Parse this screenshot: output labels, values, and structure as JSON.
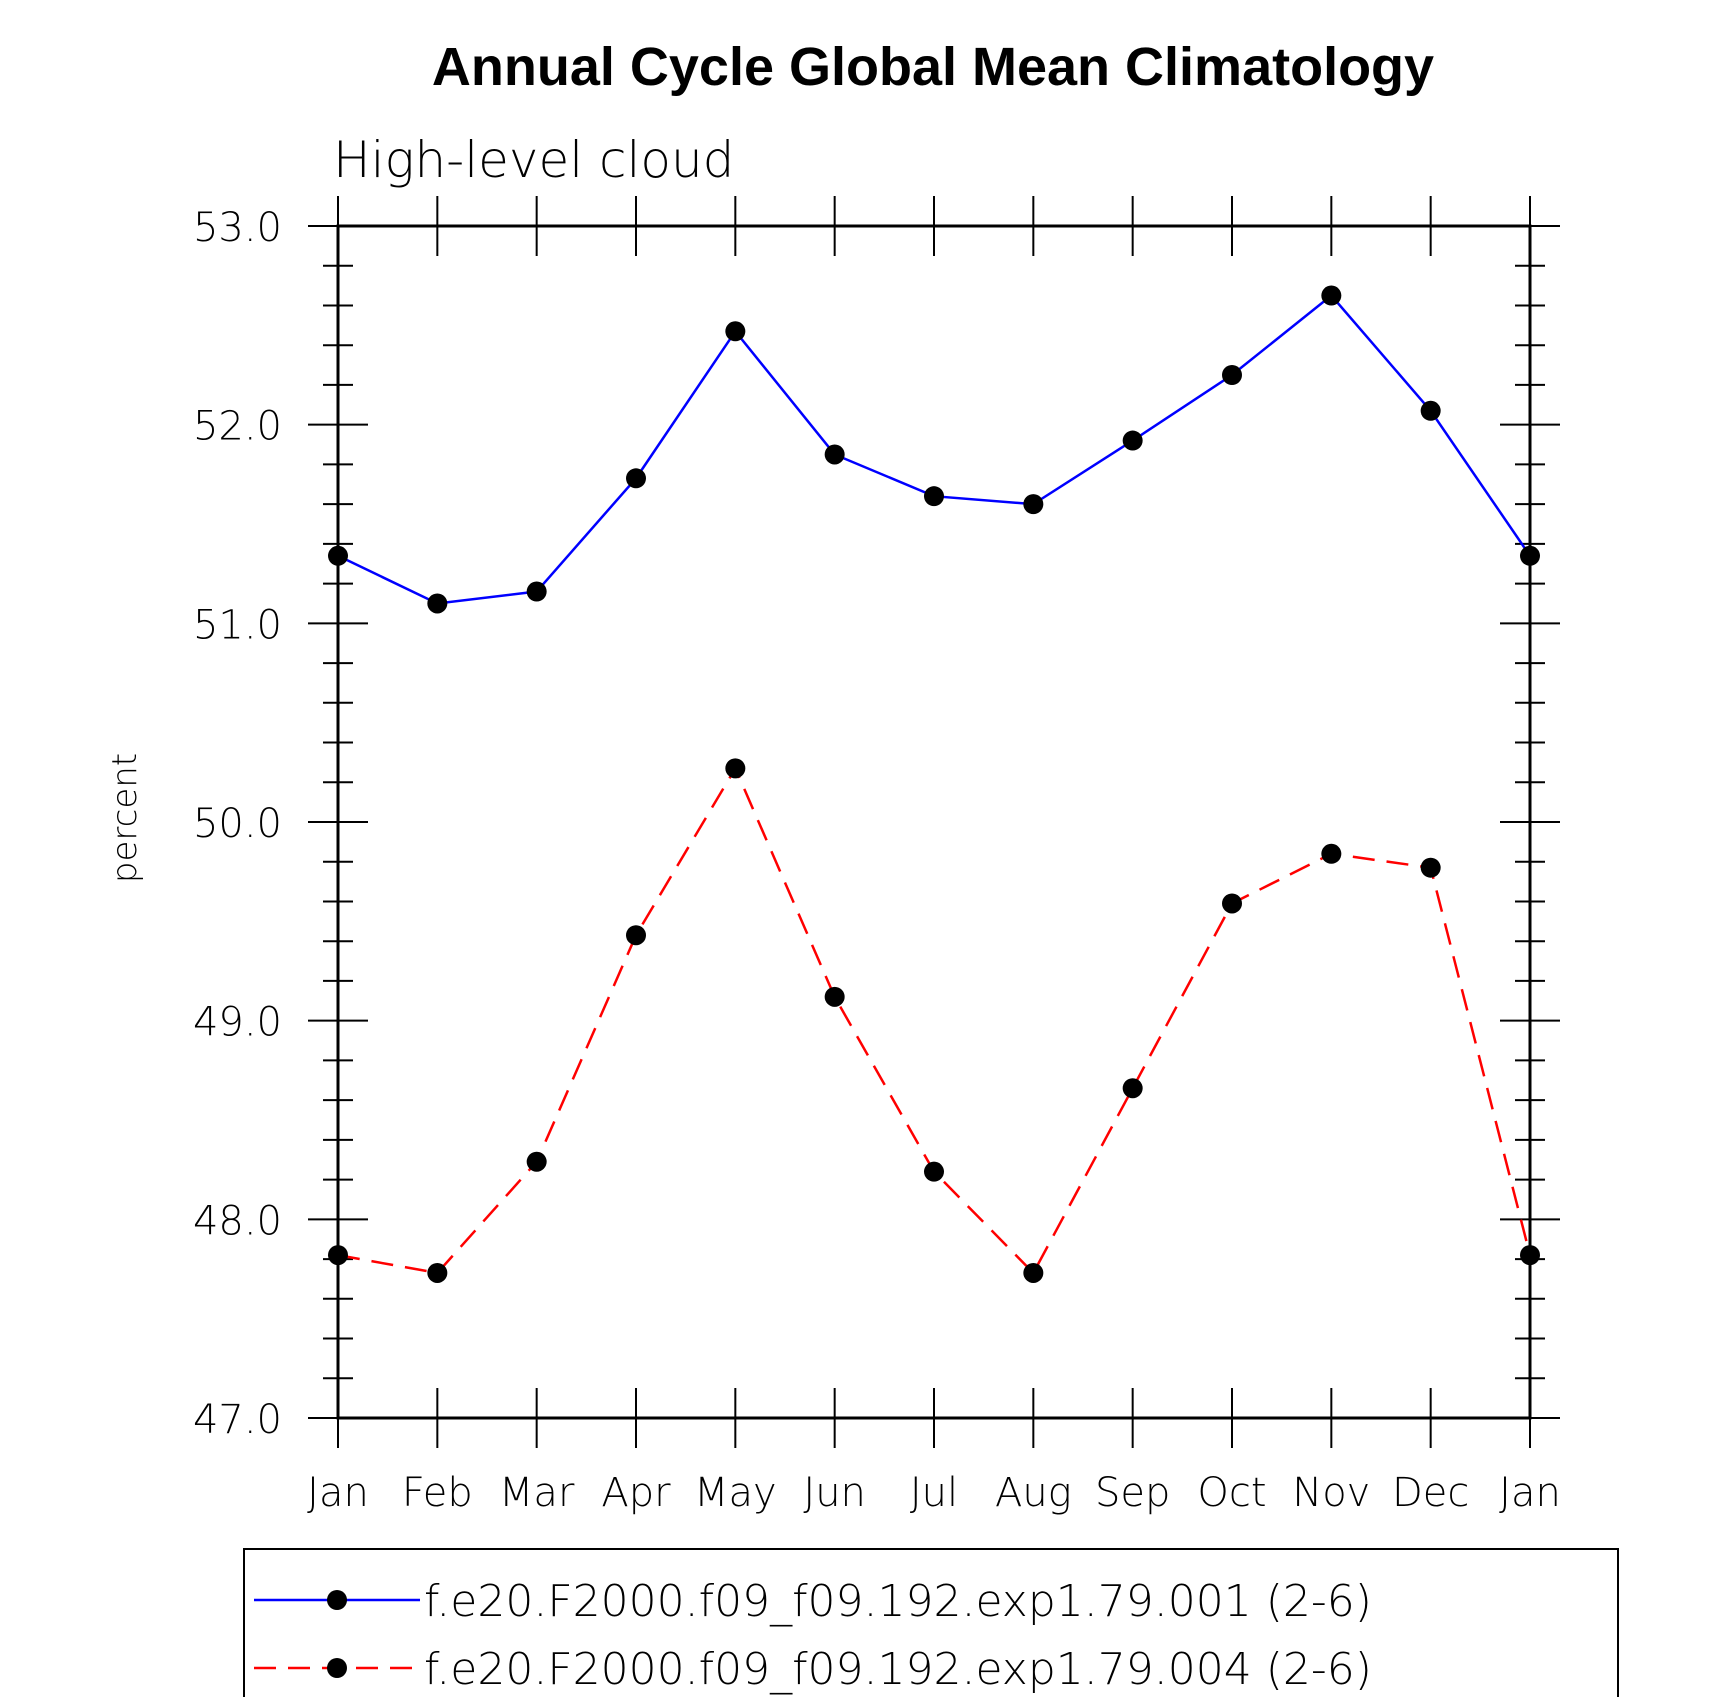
{
  "chart_data": {
    "type": "line",
    "title": "Annual Cycle Global Mean Climatology",
    "subtitle": "High-level cloud",
    "xlabel": "",
    "ylabel": "percent",
    "categories": [
      "Jan",
      "Feb",
      "Mar",
      "Apr",
      "May",
      "Jun",
      "Jul",
      "Aug",
      "Sep",
      "Oct",
      "Nov",
      "Dec",
      "Jan"
    ],
    "ylim": [
      47.0,
      53.0
    ],
    "yticks": [
      "47.0",
      "48.0",
      "49.0",
      "50.0",
      "51.0",
      "52.0",
      "53.0"
    ],
    "ytick_values": [
      47,
      48,
      49,
      50,
      51,
      52,
      53
    ],
    "grid": false,
    "legend_position": "bottom",
    "series": [
      {
        "name": "f.e20.F2000.f09_f09.192.exp1.79.001 (2-6)",
        "color": "#0000ff",
        "dash": "solid",
        "marker": "filled-circle",
        "values": [
          51.34,
          51.1,
          51.16,
          51.73,
          52.47,
          51.85,
          51.64,
          51.6,
          51.92,
          52.25,
          52.65,
          52.07,
          51.34
        ]
      },
      {
        "name": "f.e20.F2000.f09_f09.192.exp1.79.004 (2-6)",
        "color": "#ff0000",
        "dash": "dashed",
        "marker": "filled-circle",
        "values": [
          47.82,
          47.73,
          48.29,
          49.43,
          50.27,
          49.12,
          48.24,
          47.73,
          48.66,
          49.59,
          49.84,
          49.77,
          47.82
        ]
      }
    ]
  }
}
